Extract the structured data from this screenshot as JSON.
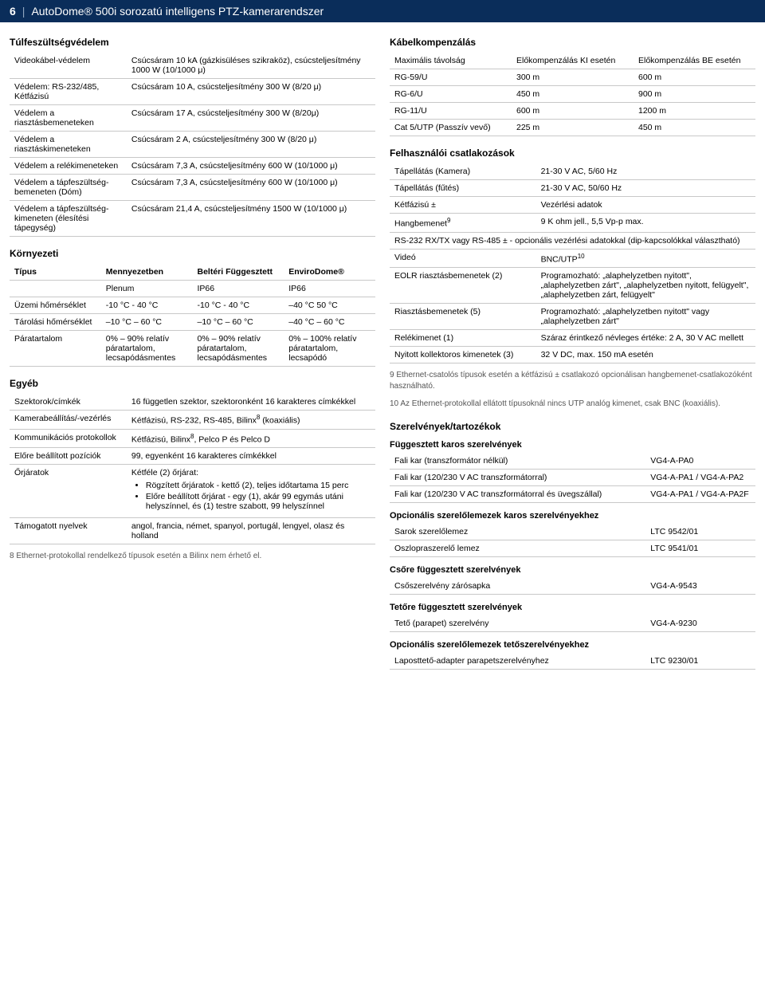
{
  "header": {
    "page": "6",
    "title": "AutoDome® 500i sorozatú intelligens PTZ-kamerarendszer"
  },
  "left": {
    "surge_title": "Túlfeszültségvédelem",
    "surge_rows": [
      {
        "k": "Videokábel-védelem",
        "v": "Csúcsáram 10 kA (gázkisüléses szikraköz), csúcsteljesítmény 1000 W (10/1000 μ)"
      },
      {
        "k": "Védelem: RS-232/485, Kétfázisú",
        "v": "Csúcsáram 10 A, csúcsteljesítmény 300 W (8/20 μ)"
      },
      {
        "k": "Védelem a riasztásbemeneteken",
        "v": "Csúcsáram 17 A, csúcsteljesítmény 300 W (8/20μ)"
      },
      {
        "k": "Védelem a riasztáskimeneteken",
        "v": "Csúcsáram 2 A, csúcsteljesítmény 300 W (8/20 μ)"
      },
      {
        "k": "Védelem a relékimeneteken",
        "v": "Csúcsáram 7,3 A, csúcsteljesítmény 600 W (10/1000 μ)"
      },
      {
        "k": "Védelem a tápfeszültség-bemeneten (Dóm)",
        "v": "Csúcsáram 7,3 A, csúcsteljesítmény 600 W (10/1000 μ)"
      },
      {
        "k": "Védelem a tápfeszültség-kimeneten (élesítési tápegység)",
        "v": "Csúcsáram 21,4 A, csúcsteljesítmény 1500 W (10/1000 μ)"
      }
    ],
    "env_title": "Környezeti",
    "env_head": [
      "Típus",
      "Mennyezetben",
      "Beltéri Függesztett",
      "EnviroDome®"
    ],
    "env_rows": [
      [
        "",
        "Plenum",
        "IP66",
        "IP66"
      ],
      [
        "Üzemi hőmérséklet",
        "-10 °C - 40 °C",
        "-10 °C - 40 °C",
        "–40 °C 50 °C"
      ],
      [
        "Tárolási hőmérséklet",
        "–10 °C – 60 °C",
        "–10 °C – 60 °C",
        "–40 °C – 60 °C"
      ],
      [
        "Páratartalom",
        "0% – 90% relatív páratartalom, lecsapódásmentes",
        "0% – 90% relatív páratartalom, lecsapódásmentes",
        "0% – 100% relatív páratartalom, lecsapódó"
      ]
    ],
    "other_title": "Egyéb",
    "other_rows": [
      {
        "k": "Szektorok/címkék",
        "v": "16 független szektor, szektoronként 16 karakteres címkékkel"
      },
      {
        "k": "Kamerabeállítás/-vezérlés",
        "v": "Kétfázisú, RS-232, RS-485, Bilinx",
        "sup": "8",
        "v2": " (koaxiális)"
      },
      {
        "k": "Kommunikációs protokollok",
        "v": "Kétfázisú, Bilinx",
        "sup": "8",
        "v2": ", Pelco P és Pelco D"
      },
      {
        "k": "Előre beállított pozíciók",
        "v": "99, egyenként 16 karakteres címkékkel"
      }
    ],
    "patrol_label": "Őrjáratok",
    "patrol_intro": "Kétféle (2) őrjárat:",
    "patrol_items": [
      "Rögzített őrjáratok - kettő (2), teljes időtartama 15 perc",
      "Előre beállított őrjárat - egy (1), akár 99 egymás utáni helyszínnel, és (1) testre szabott, 99 helyszínnel"
    ],
    "lang_label": "Támogatott nyelvek",
    "lang_value": "angol, francia, német, spanyol, portugál, lengyel, olasz és holland",
    "footnote8": "8 Ethernet-protokollal rendelkező típusok esetén a Bilinx nem érhető el."
  },
  "right": {
    "cable_title": "Kábelkompenzálás",
    "cable_head": [
      "Maximális távolság",
      "Előkompenzálás KI esetén",
      "Előkompenzálás BE esetén"
    ],
    "cable_rows": [
      [
        "RG-59/U",
        "300 m",
        "600 m"
      ],
      [
        "RG-6/U",
        "450 m",
        "900 m"
      ],
      [
        "RG-11/U",
        "600 m",
        "1200 m"
      ],
      [
        "Cat 5/UTP (Passzív vevő)",
        "225 m",
        "450 m"
      ]
    ],
    "conn_title": "Felhasználói csatlakozások",
    "conn_rows": [
      {
        "k": "Tápellátás (Kamera)",
        "v": "21-30 V AC, 5/60 Hz"
      },
      {
        "k": "Tápellátás (fűtés)",
        "v": "21-30 V AC, 50/60 Hz"
      },
      {
        "k": "Kétfázisú ±",
        "v": "Vezérlési adatok"
      },
      {
        "k": "Hangbemenet",
        "ksup": "9",
        "v": "9 K ohm jell., 5,5 Vp-p max."
      }
    ],
    "rs_note": "RS-232 RX/TX vagy RS-485 ± - opcionális vezérlési adatokkal (dip-kapcsolókkal választható)",
    "conn_rows2": [
      {
        "k": "Videó",
        "v": "BNC/UTP",
        "vsup": "10"
      },
      {
        "k": "EOLR riasztásbemenetek (2)",
        "v": "Programozható: „alaphelyzetben nyitott\", „alaphelyzetben zárt\", „alaphelyzetben nyitott, felügyelt\", „alaphelyzetben zárt, felügyelt\""
      },
      {
        "k": "Riasztásbemenetek (5)",
        "v": "Programozható: „alaphelyzetben nyitott\" vagy „alaphelyzetben zárt\""
      },
      {
        "k": "Relékimenet (1)",
        "v": "Száraz érintkező névleges értéke: 2 A, 30 V AC mellett"
      },
      {
        "k": "Nyitott kollektoros kimenetek (3)",
        "v": "32 V DC, max. 150 mA esetén"
      }
    ],
    "footnote9": "9 Ethernet-csatolós típusok esetén a kétfázisú ± csatlakozó opcionálisan hangbemenet-csatlakozóként használható.",
    "footnote10": "10 Az Ethernet-protokollal ellátott típusoknál nincs UTP analóg kimenet, csak BNC (koaxiális).",
    "acc_title": "Szerelvények/tartozékok",
    "acc_groups": [
      {
        "h": "Függesztett karos szerelvények",
        "rows": [
          [
            "Fali kar (transzformátor nélkül)",
            "VG4-A-PA0"
          ],
          [
            "Fali kar (120/230 V AC transzformátorral)",
            "VG4-A-PA1 / VG4-A-PA2"
          ],
          [
            "Fali kar (120/230 V AC transzformátorral és üvegszállal)",
            "VG4-A-PA1 / VG4-A-PA2F"
          ]
        ]
      },
      {
        "h": "Opcionális szerelőlemezek karos szerelvényekhez",
        "rows": [
          [
            "Sarok szerelőlemez",
            "LTC 9542/01"
          ],
          [
            "Oszlopraszerelő lemez",
            "LTC 9541/01"
          ]
        ]
      },
      {
        "h": "Csőre függesztett szerelvények",
        "rows": [
          [
            "Csőszerelvény zárósapka",
            "VG4-A-9543"
          ]
        ]
      },
      {
        "h": "Tetőre függesztett szerelvények",
        "rows": [
          [
            "Tető (parapet) szerelvény",
            "VG4-A-9230"
          ]
        ]
      },
      {
        "h": "Opcionális szerelőlemezek tetőszerelvényekhez",
        "rows": [
          [
            "Laposttető-adapter parapetszerelvényhez",
            "LTC 9230/01"
          ]
        ]
      }
    ]
  }
}
